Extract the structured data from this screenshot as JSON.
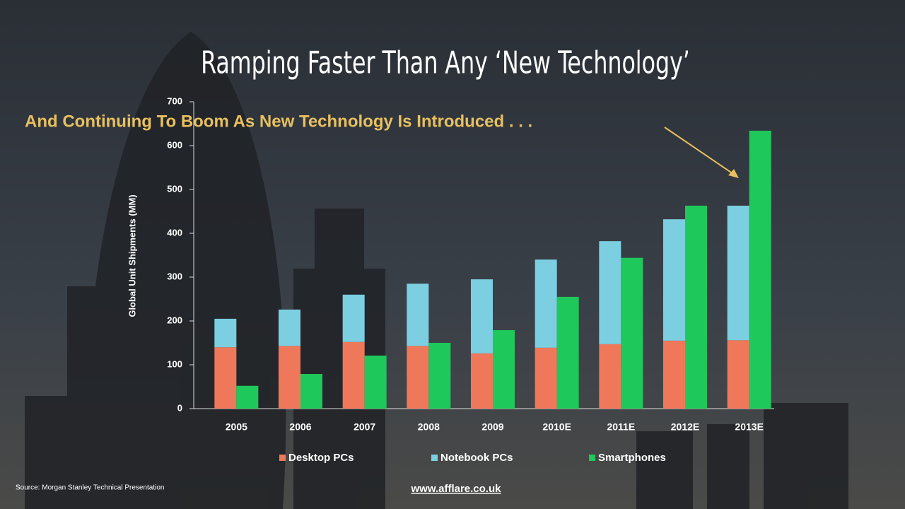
{
  "chart_data": {
    "type": "bar",
    "title": "Ramping Faster Than Any ‘New Technology’",
    "annotation": "And Continuing To Boom As New Technology Is Introduced . . .",
    "y_label": "Global Unit Shipments (MM)",
    "source": "Source: Morgan Stanley Technical Presentation",
    "website": "www.afflare.co.uk",
    "categories": [
      "2005",
      "2006",
      "2007",
      "2008",
      "2009",
      "2010E",
      "2011E",
      "2012E",
      "2013E"
    ],
    "series": [
      {
        "name": "Desktop PCs",
        "color": "#f0785a",
        "values": [
          140,
          143,
          152,
          143,
          126,
          139,
          147,
          155,
          156
        ]
      },
      {
        "name": "Notebook PCs",
        "color": "#7ccfe0",
        "stacked": true,
        "values": [
          65,
          83,
          108,
          142,
          169,
          201,
          235,
          277,
          307
        ]
      },
      {
        "name": "Smartphones",
        "color": "#1ec85a",
        "values": [
          52,
          79,
          121,
          150,
          179,
          255,
          344,
          463,
          634
        ]
      }
    ],
    "ylim": [
      0,
      700
    ],
    "yticks": [
      0,
      100,
      200,
      300,
      400,
      500,
      600,
      700
    ]
  }
}
